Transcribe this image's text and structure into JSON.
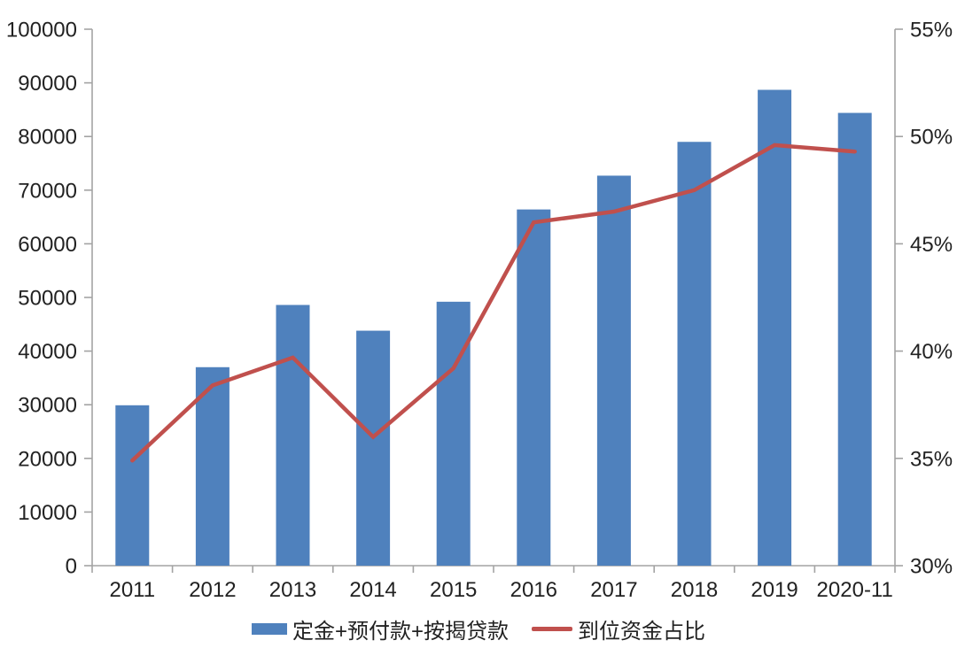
{
  "chart_data": {
    "type": "bar+line combo",
    "title": "",
    "categories": [
      "2011",
      "2012",
      "2013",
      "2014",
      "2015",
      "2016",
      "2017",
      "2018",
      "2019",
      "2020-11"
    ],
    "series": [
      {
        "name": "定金+预付款+按揭贷款",
        "type": "bar",
        "axis": "left",
        "color": "#4f81bd",
        "values": [
          29900,
          37000,
          48600,
          43800,
          49200,
          66400,
          72700,
          79000,
          88700,
          84400
        ]
      },
      {
        "name": "到位资金占比",
        "type": "line",
        "axis": "right",
        "color": "#c0504d",
        "values": [
          34.9,
          38.4,
          39.7,
          36.0,
          39.2,
          46.0,
          46.5,
          47.5,
          49.6,
          49.3
        ]
      }
    ],
    "left_axis": {
      "min": 0,
      "max": 100000,
      "step": 10000,
      "tick_labels": [
        "0",
        "10000",
        "20000",
        "30000",
        "40000",
        "50000",
        "60000",
        "70000",
        "80000",
        "90000",
        "100000"
      ]
    },
    "right_axis": {
      "min": 30,
      "max": 55,
      "step": 5,
      "tick_labels": [
        "30%",
        "35%",
        "40%",
        "45%",
        "50%",
        "55%"
      ]
    },
    "grid": false,
    "legend_position": "bottom",
    "axis_color": "#a3a3a3",
    "text_color": "#222222"
  }
}
